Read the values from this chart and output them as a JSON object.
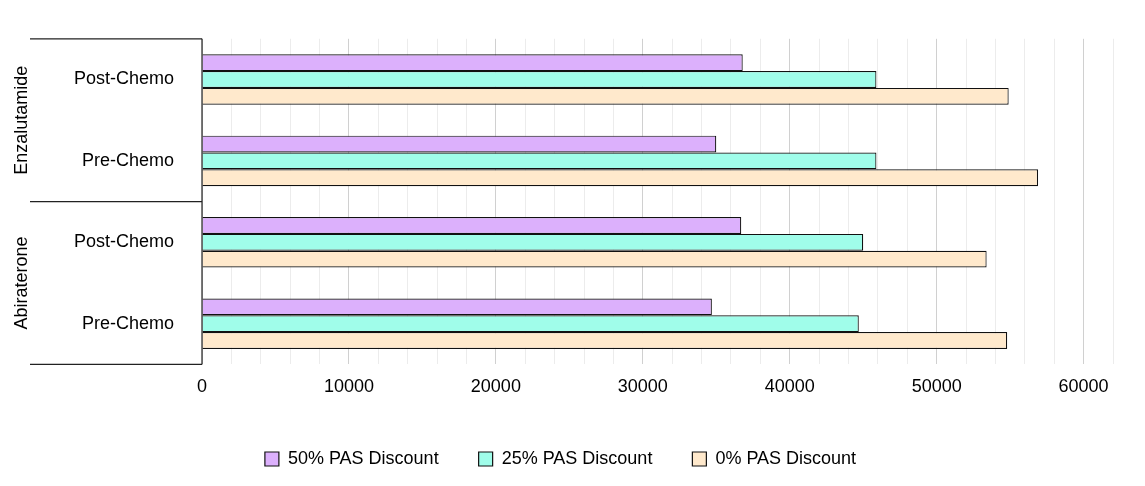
{
  "chart_data": {
    "type": "bar",
    "orientation": "horizontal",
    "categories": [
      "Post-Chemo",
      "Pre-Chemo",
      "Post-Chemo",
      "Pre-Chemo"
    ],
    "series": [
      {
        "name": "50% PAS Discount",
        "color": "#dcb0fc",
        "values": [
          36800,
          35000,
          36700,
          34700
        ]
      },
      {
        "name": "25% PAS Discount",
        "color": "#a0fdea",
        "values": [
          45900,
          45900,
          45000,
          44700
        ]
      },
      {
        "name": "0% PAS Discount",
        "color": "#ffe9cc",
        "values": [
          54900,
          56900,
          53400,
          54800
        ]
      }
    ],
    "annotations": [
      "Enzalutamide",
      "Abiraterone"
    ],
    "xlim": [
      0,
      62000
    ],
    "xticks": [
      0,
      {
        "value": 2000,
        "label": null
      },
      {
        "value": 4000,
        "label": null
      },
      {
        "value": 6000,
        "label": null
      },
      {
        "value": 8000,
        "label": null
      },
      10000,
      {
        "value": 12000,
        "label": null
      },
      {
        "value": 14000,
        "label": null
      },
      {
        "value": 16000,
        "label": null
      },
      {
        "value": 18000,
        "label": null
      },
      20000,
      {
        "value": 22000,
        "label": null
      },
      {
        "value": 24000,
        "label": null
      },
      {
        "value": 26000,
        "label": null
      },
      {
        "value": 28000,
        "label": null
      },
      30000,
      {
        "value": 32000,
        "label": null
      },
      {
        "value": 34000,
        "label": null
      },
      {
        "value": 36000,
        "label": null
      },
      {
        "value": 38000,
        "label": null
      },
      40000,
      {
        "value": 42000,
        "label": null
      },
      {
        "value": 44000,
        "label": null
      },
      {
        "value": 46000,
        "label": null
      },
      {
        "value": 48000,
        "label": null
      },
      50000,
      {
        "value": 52000,
        "label": null
      },
      {
        "value": 54000,
        "label": null
      },
      {
        "value": 56000,
        "label": null
      },
      {
        "value": 58000,
        "label": null
      },
      60000,
      {
        "value": 62000,
        "label": null
      }
    ],
    "grid": "x",
    "legend": "bottom"
  }
}
